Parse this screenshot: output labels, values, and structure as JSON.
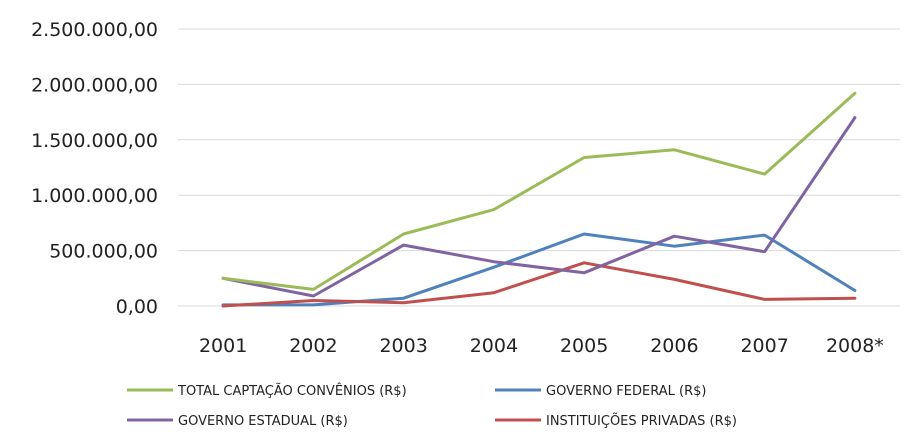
{
  "chart_data": {
    "type": "line",
    "categories": [
      "2001",
      "2002",
      "2003",
      "2004",
      "2005",
      "2006",
      "2007",
      "2008*"
    ],
    "ylim": [
      0,
      2500000
    ],
    "y_ticks": [
      "0,00",
      "500.000,00",
      "1.000.000,00",
      "1.500.000,00",
      "2.000.000,00",
      "2.500.000,00"
    ],
    "y_tick_values": [
      0,
      500000,
      1000000,
      1500000,
      2000000,
      2500000
    ],
    "grid": "horizontal",
    "legend_position": "bottom",
    "series": [
      {
        "name": "TOTAL CAPTAÇÃO CONVÊNIOS (R$)",
        "color": "#9BBB59",
        "values": [
          250000,
          150000,
          650000,
          870000,
          1340000,
          1410000,
          1190000,
          1920000
        ]
      },
      {
        "name": "GOVERNO FEDERAL (R$)",
        "color": "#4F81BD",
        "values": [
          10000,
          10000,
          70000,
          350000,
          650000,
          540000,
          640000,
          140000
        ]
      },
      {
        "name": "GOVERNO ESTADUAL (R$)",
        "color": "#8064A2",
        "values": [
          250000,
          90000,
          550000,
          400000,
          300000,
          630000,
          490000,
          1700000
        ]
      },
      {
        "name": "INSTITUIÇÕES PRIVADAS (R$)",
        "color": "#C0504D",
        "values": [
          0,
          50000,
          30000,
          120000,
          390000,
          240000,
          60000,
          70000
        ]
      }
    ]
  }
}
